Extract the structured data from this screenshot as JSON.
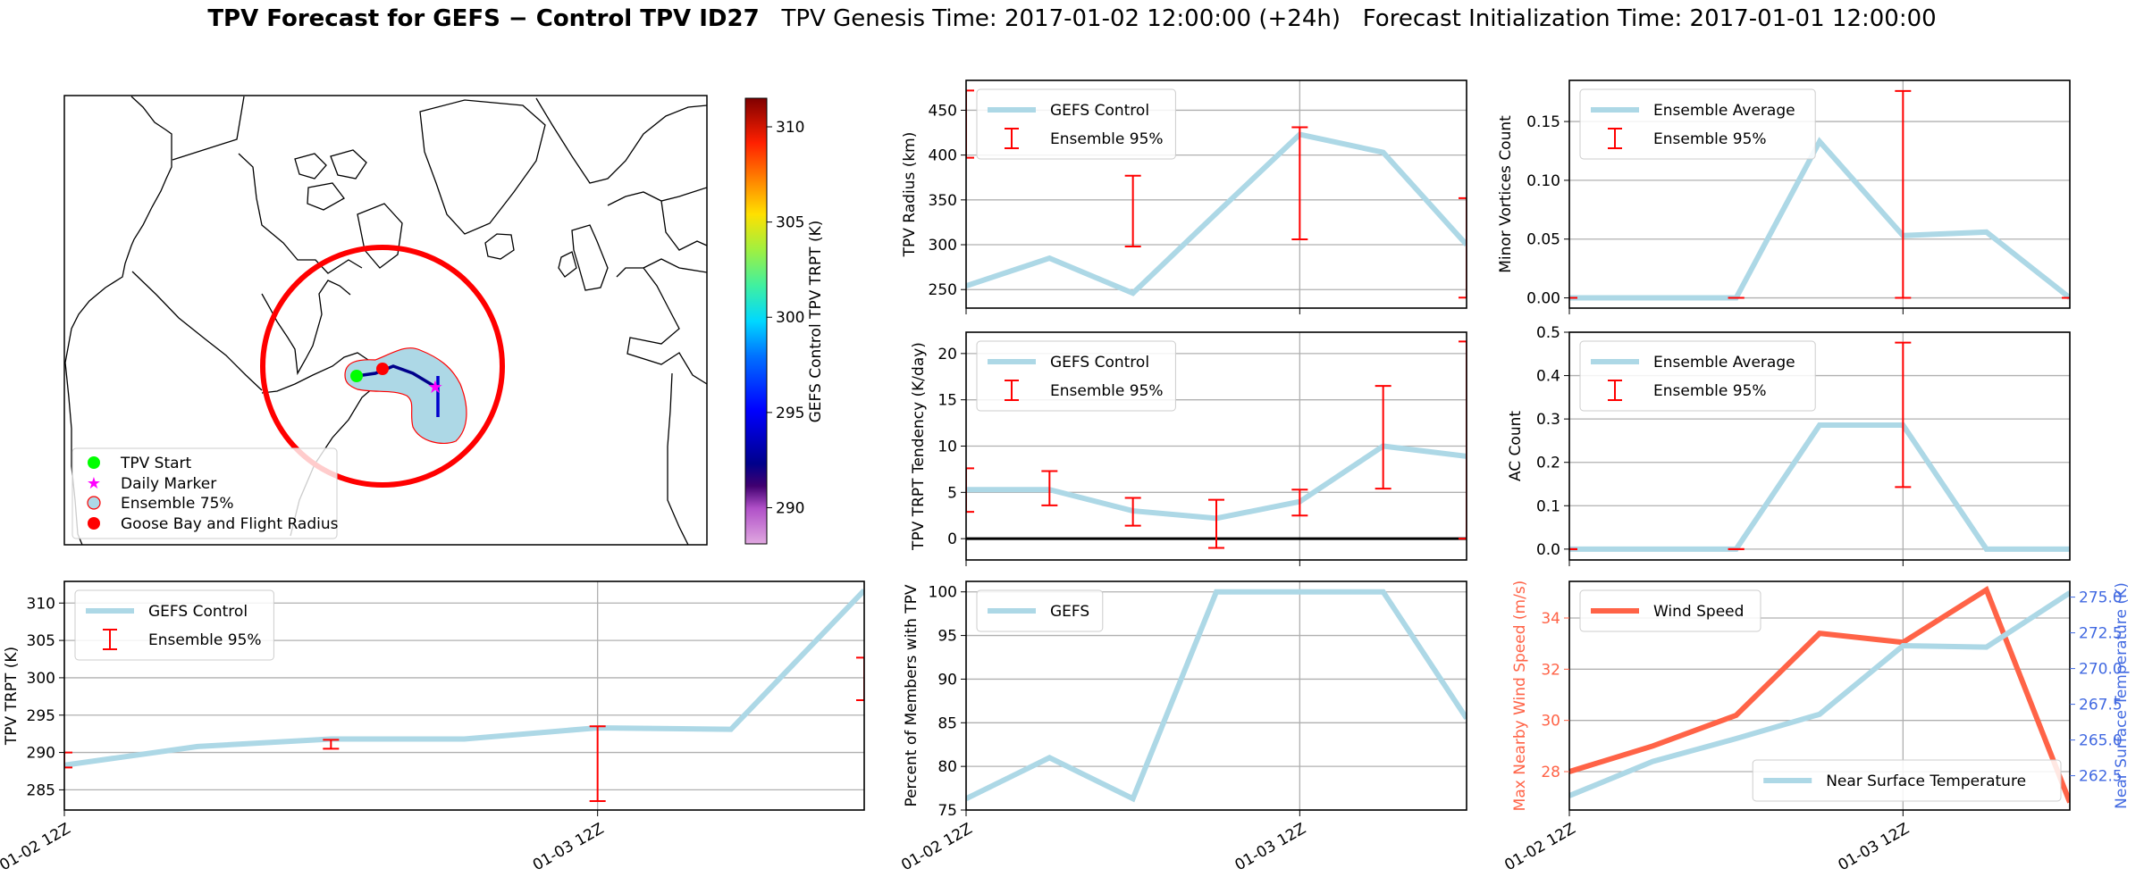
{
  "title": {
    "bold": "TPV Forecast for GEFS − Control TPV ID27",
    "genesis": "TPV Genesis Time: 2017-01-02 12:00:00 (+24h)",
    "init": "Forecast Initialization Time: 2017-01-01 12:00:00"
  },
  "map": {
    "legend": {
      "start": "TPV Start",
      "daily": "Daily Marker",
      "ensemble": "Ensemble 75%",
      "goose_bay": "Goose Bay and Flight Radius"
    },
    "colorbar": {
      "label": "GEFS Control TPV TRPT (K)",
      "ticks": [
        "290",
        "295",
        "300",
        "305",
        "310"
      ],
      "range": [
        288.1,
        311.5
      ]
    },
    "colors": {
      "start": "#00ff00",
      "daily": "#ff00ff",
      "ensemble_fill": "#add8e6",
      "ensemble_edge": "#ff0000",
      "goose_bay": "#ff0000",
      "track": "#00008b"
    }
  },
  "chart_data": [
    {
      "name": "tpv-radius-chart",
      "type": "line",
      "ylabel": "TPV Radius (km)",
      "ylim": [
        229.3,
        483.3
      ],
      "yticks": [
        "250",
        "300",
        "350",
        "400",
        "450"
      ],
      "xticks": [
        {
          "index": 0
        },
        {
          "index": 4
        }
      ],
      "series": [
        {
          "name": "GEFS Control",
          "color": "#add8e6",
          "values": [
            254,
            285,
            246,
            335,
            423,
            403,
            300
          ]
        }
      ],
      "errorbars": {
        "name": "Ensemble 95%",
        "color": "#ff0000",
        "bars": [
          {
            "index": 0,
            "low": 397,
            "high": 472
          },
          {
            "index": 2,
            "low": 298,
            "high": 377
          },
          {
            "index": 4,
            "low": 306,
            "high": 431
          },
          {
            "index": 6,
            "low": 241,
            "high": 352
          }
        ]
      },
      "legend": "upper-left",
      "grid": true
    },
    {
      "name": "tpv-trpt-tendency-chart",
      "type": "line",
      "ylabel": "TPV TRPT Tendency (K/day)",
      "ylim": [
        -2.3,
        22.3
      ],
      "yticks": [
        "0",
        "5",
        "10",
        "15",
        "20"
      ],
      "zero_line": true,
      "xticks": [
        {
          "index": 0
        },
        {
          "index": 4
        }
      ],
      "series": [
        {
          "name": "GEFS Control",
          "color": "#add8e6",
          "values": [
            5.3,
            5.3,
            3.0,
            2.2,
            4.0,
            10.0,
            8.9
          ]
        }
      ],
      "errorbars": {
        "name": "Ensemble 95%",
        "color": "#ff0000",
        "bars": [
          {
            "index": 0,
            "low": 2.9,
            "high": 7.6
          },
          {
            "index": 1,
            "low": 3.6,
            "high": 7.3
          },
          {
            "index": 2,
            "low": 1.4,
            "high": 4.4
          },
          {
            "index": 3,
            "low": -1.0,
            "high": 4.2
          },
          {
            "index": 4,
            "low": 2.5,
            "high": 5.3
          },
          {
            "index": 5,
            "low": 5.4,
            "high": 16.5
          },
          {
            "index": 6,
            "low": 0.0,
            "high": 21.3
          }
        ]
      },
      "legend": "upper-left",
      "grid": true
    },
    {
      "name": "minor-vortices-chart",
      "type": "line",
      "ylabel": "Minor Vortices Count",
      "ylim": [
        -0.0087,
        0.185
      ],
      "yticks": [
        "0.00",
        "0.05",
        "0.10",
        "0.15"
      ],
      "xticks": [
        {
          "index": 0
        },
        {
          "index": 4
        }
      ],
      "series": [
        {
          "name": "Ensemble Average",
          "color": "#add8e6",
          "values": [
            0,
            0,
            0,
            0.133,
            0.053,
            0.056,
            0
          ]
        }
      ],
      "errorbars": {
        "name": "Ensemble 95%",
        "color": "#ff0000",
        "bars": [
          {
            "index": 0,
            "low": 0,
            "high": 0
          },
          {
            "index": 2,
            "low": 0,
            "high": 0
          },
          {
            "index": 4,
            "low": 0,
            "high": 0.176
          },
          {
            "index": 6,
            "low": 0,
            "high": 0
          }
        ]
      },
      "legend": "upper-left",
      "grid": true
    },
    {
      "name": "ac-count-chart",
      "type": "line",
      "ylabel": "AC Count",
      "ylim": [
        -0.025,
        0.5
      ],
      "yticks": [
        "0.0",
        "0.1",
        "0.2",
        "0.3",
        "0.4",
        "0.5"
      ],
      "xticks": [
        {
          "index": 0
        },
        {
          "index": 4
        }
      ],
      "series": [
        {
          "name": "Ensemble Average",
          "color": "#add8e6",
          "values": [
            0,
            0,
            0,
            0.286,
            0.286,
            0,
            0
          ]
        }
      ],
      "errorbars": {
        "name": "Ensemble 95%",
        "color": "#ff0000",
        "bars": [
          {
            "index": 0,
            "low": 0,
            "high": 0
          },
          {
            "index": 2,
            "low": 0,
            "high": 0
          },
          {
            "index": 4,
            "low": 0.143,
            "high": 0.476
          }
        ]
      },
      "legend": "upper-left",
      "grid": true
    },
    {
      "name": "tpv-trpt-chart",
      "type": "line",
      "ylabel": "TPV TRPT (K)",
      "ylim": [
        282.3,
        312.9
      ],
      "yticks": [
        "285",
        "290",
        "295",
        "300",
        "305",
        "310"
      ],
      "xticks": [
        {
          "index": 0,
          "label": "01-02 12Z"
        },
        {
          "index": 4,
          "label": "01-03 12Z"
        }
      ],
      "series": [
        {
          "name": "GEFS Control",
          "color": "#add8e6",
          "values": [
            288.3,
            290.8,
            291.8,
            291.8,
            293.3,
            293.1,
            311.7
          ]
        }
      ],
      "errorbars": {
        "name": "Ensemble 95%",
        "color": "#ff0000",
        "bars": [
          {
            "index": 0,
            "low": 288.0,
            "high": 290.0
          },
          {
            "index": 2,
            "low": 290.5,
            "high": 291.7
          },
          {
            "index": 4,
            "low": 283.5,
            "high": 293.5
          },
          {
            "index": 6,
            "low": 297.0,
            "high": 302.7
          }
        ]
      },
      "legend": "upper-left",
      "grid": true
    },
    {
      "name": "percent-members-chart",
      "type": "line",
      "ylabel": "Percent of Members with TPV",
      "ylim": [
        75,
        101.2
      ],
      "yticks": [
        "75",
        "80",
        "85",
        "90",
        "95",
        "100"
      ],
      "xticks": [
        {
          "index": 0,
          "label": "01-02 12Z"
        },
        {
          "index": 4,
          "label": "01-03 12Z"
        }
      ],
      "series": [
        {
          "name": "GEFS",
          "color": "#add8e6",
          "values": [
            76.3,
            81.0,
            76.3,
            100,
            100,
            100,
            85.5
          ]
        }
      ],
      "legend": "upper-left",
      "grid": true
    },
    {
      "name": "wind-temperature-chart",
      "type": "line",
      "ylabel": "Max Nearby Wind Speed (m/s)",
      "ylabel_color": "#ff6347",
      "ylim": [
        26.5,
        35.43
      ],
      "yticks": [
        "28",
        "30",
        "32",
        "34"
      ],
      "y2label": "Near Surface Temperature (K)",
      "y2label_color": "#4169e1",
      "y2lim": [
        260.1,
        276.1
      ],
      "y2ticks": [
        "262.5",
        "265.0",
        "267.5",
        "270.0",
        "272.5",
        "275.0"
      ],
      "xticks": [
        {
          "index": 0,
          "label": "01-02 12Z"
        },
        {
          "index": 4,
          "label": "01-03 12Z"
        }
      ],
      "series": [
        {
          "name": "Wind Speed",
          "color": "#ff6347",
          "axis": "left",
          "values": [
            28.0,
            29.0,
            30.2,
            33.4,
            33.05,
            35.1,
            26.8
          ],
          "legend": "upper-left"
        },
        {
          "name": "Near Surface Temperature",
          "color": "#add8e6",
          "axis": "right",
          "values": [
            261.1,
            263.5,
            265.1,
            266.8,
            271.6,
            271.5,
            275.3
          ],
          "legend": "lower-right"
        }
      ],
      "grid": true
    }
  ]
}
